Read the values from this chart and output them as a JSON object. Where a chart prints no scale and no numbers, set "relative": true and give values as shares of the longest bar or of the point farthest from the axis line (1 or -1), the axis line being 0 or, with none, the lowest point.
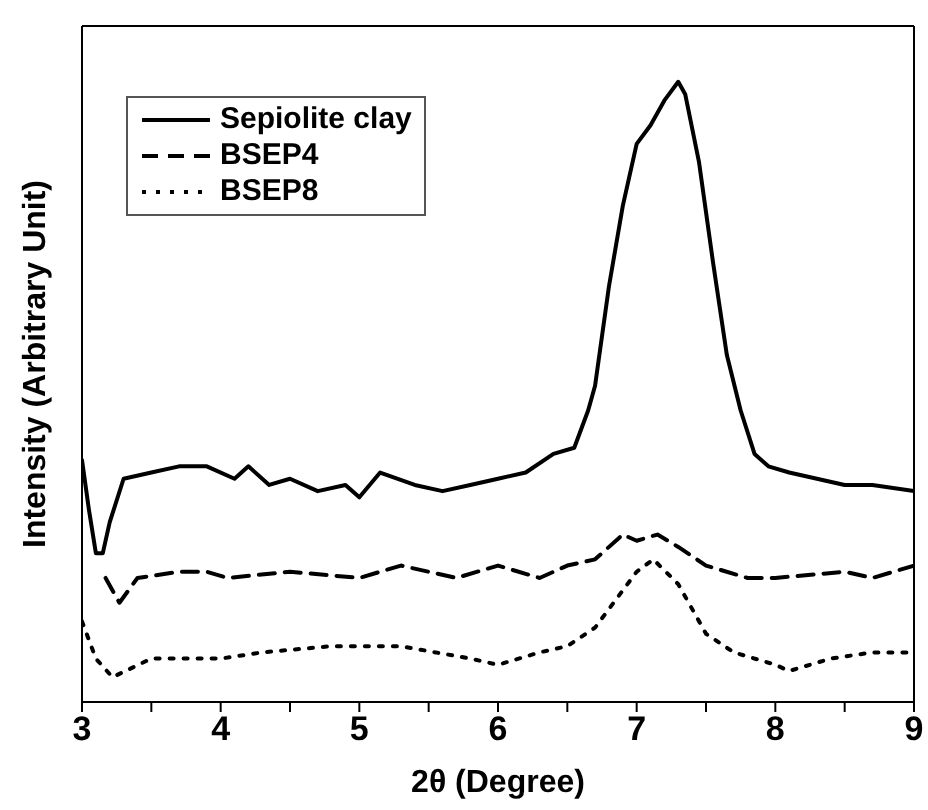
{
  "chart_data": {
    "type": "line",
    "xlabel": "2θ (Degree)",
    "ylabel": "Intensity (Arbitrary Unit)",
    "relative": true,
    "xlim": [
      3,
      9
    ],
    "xticks": [
      3,
      {
        "value": 3.5,
        "label": null
      },
      4,
      {
        "value": 4.5,
        "label": null
      },
      5,
      {
        "value": 5.5,
        "label": null
      },
      6,
      {
        "value": 6.5,
        "label": null
      },
      7,
      {
        "value": 7.5,
        "label": null
      },
      8,
      {
        "value": 8.5,
        "label": null
      },
      9
    ],
    "legend": "top left",
    "grid": false,
    "marker": "none",
    "series": [
      {
        "name": "Sepiolite clay",
        "color": "#000000",
        "line_style": "solid",
        "x": [
          3.0,
          3.05,
          3.1,
          3.15,
          3.2,
          3.3,
          3.5,
          3.7,
          3.9,
          4.1,
          4.2,
          4.35,
          4.5,
          4.7,
          4.9,
          5.0,
          5.15,
          5.4,
          5.6,
          5.8,
          6.0,
          6.2,
          6.4,
          6.55,
          6.65,
          6.7,
          6.8,
          6.9,
          7.0,
          7.1,
          7.2,
          7.3,
          7.35,
          7.45,
          7.55,
          7.65,
          7.75,
          7.85,
          7.95,
          8.1,
          8.3,
          8.5,
          8.7,
          9.0
        ],
        "values": [
          0.39,
          0.31,
          0.24,
          0.24,
          0.29,
          0.36,
          0.37,
          0.38,
          0.38,
          0.36,
          0.38,
          0.35,
          0.36,
          0.34,
          0.35,
          0.33,
          0.37,
          0.35,
          0.34,
          0.35,
          0.36,
          0.37,
          0.4,
          0.41,
          0.47,
          0.51,
          0.67,
          0.8,
          0.9,
          0.93,
          0.97,
          1,
          0.98,
          0.87,
          0.71,
          0.56,
          0.47,
          0.4,
          0.38,
          0.37,
          0.36,
          0.35,
          0.35,
          0.34
        ]
      },
      {
        "name": "BSEP4",
        "color": "#000000",
        "line_style": "dashed",
        "x": [
          3.17,
          3.27,
          3.4,
          3.7,
          3.9,
          4.05,
          4.5,
          5.0,
          5.3,
          5.7,
          6.0,
          6.3,
          6.5,
          6.7,
          6.9,
          7.0,
          7.15,
          7.3,
          7.5,
          7.8,
          8.0,
          8.5,
          8.7,
          9.0
        ],
        "values": [
          0.2,
          0.16,
          0.2,
          0.21,
          0.21,
          0.2,
          0.21,
          0.2,
          0.22,
          0.2,
          0.22,
          0.2,
          0.22,
          0.23,
          0.27,
          0.26,
          0.27,
          0.25,
          0.22,
          0.2,
          0.2,
          0.21,
          0.2,
          0.22
        ]
      },
      {
        "name": "BSEP8",
        "color": "#000000",
        "line_style": "dotted",
        "x": [
          3.0,
          3.1,
          3.22,
          3.5,
          4.0,
          4.3,
          4.8,
          5.3,
          5.8,
          6.0,
          6.3,
          6.5,
          6.7,
          6.9,
          7.0,
          7.12,
          7.3,
          7.5,
          7.7,
          8.0,
          8.1,
          8.4,
          8.7,
          9.0
        ],
        "values": [
          0.13,
          0.07,
          0.04,
          0.07,
          0.07,
          0.08,
          0.09,
          0.09,
          0.07,
          0.06,
          0.08,
          0.09,
          0.12,
          0.18,
          0.21,
          0.23,
          0.19,
          0.11,
          0.08,
          0.06,
          0.05,
          0.07,
          0.08,
          0.08
        ]
      }
    ]
  }
}
